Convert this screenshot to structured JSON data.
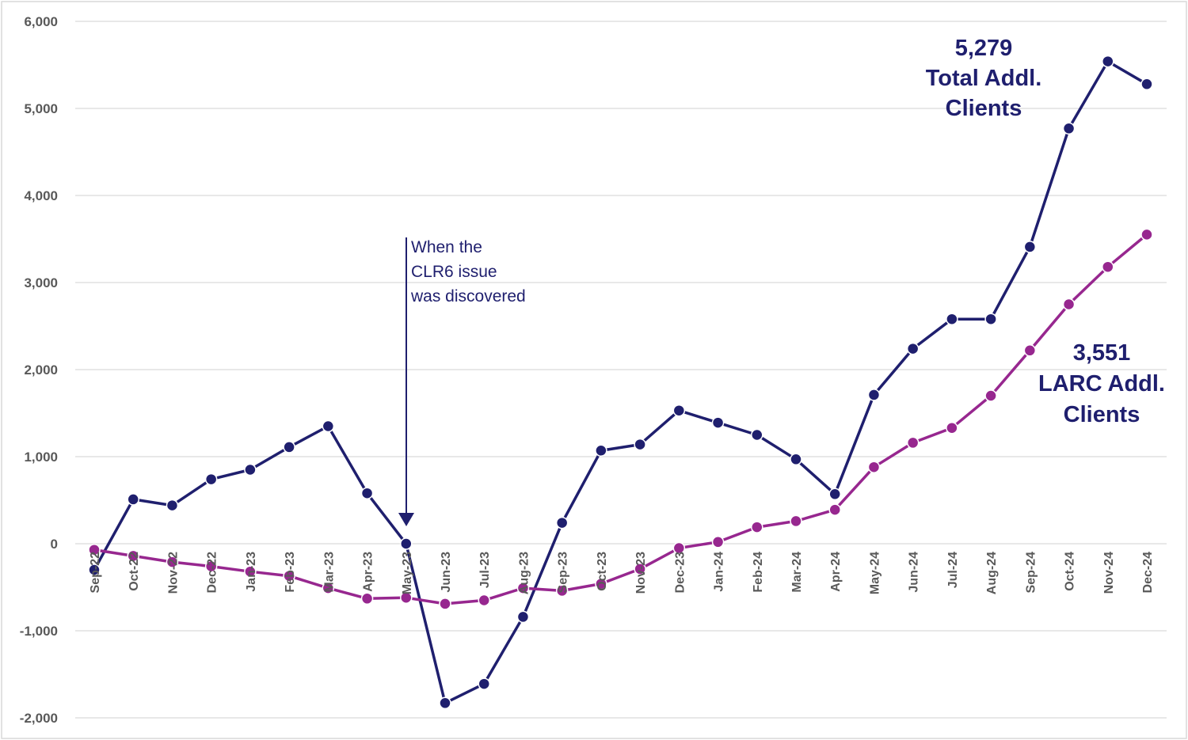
{
  "chart_data": {
    "type": "line",
    "categories": [
      "Sep-22",
      "Oct-22",
      "Nov-22",
      "Dec-22",
      "Jan-23",
      "Feb-23",
      "Mar-23",
      "Apr-23",
      "May-23",
      "Jun-23",
      "Jul-23",
      "Aug-23",
      "Sep-23",
      "Oct-23",
      "Nov-23",
      "Dec-23",
      "Jan-24",
      "Feb-24",
      "Mar-24",
      "Apr-24",
      "May-24",
      "Jun-24",
      "Jul-24",
      "Aug-24",
      "Sep-24",
      "Oct-24",
      "Nov-24",
      "Dec-24"
    ],
    "series": [
      {
        "key": "total",
        "color": "#1f1f6e",
        "values": [
          -300,
          510,
          440,
          740,
          850,
          1110,
          1350,
          580,
          0,
          -1830,
          -1610,
          -840,
          240,
          1070,
          1140,
          1530,
          1390,
          1250,
          970,
          570,
          1710,
          2240,
          2580,
          2580,
          3410,
          4770,
          5540,
          5279
        ]
      },
      {
        "key": "larc",
        "color": "#97278f",
        "values": [
          -70,
          -140,
          -210,
          -260,
          -320,
          -370,
          -510,
          -630,
          -620,
          -690,
          -650,
          -510,
          -540,
          -460,
          -290,
          -50,
          20,
          190,
          260,
          390,
          880,
          1160,
          1330,
          1700,
          2220,
          2750,
          3180,
          3551
        ]
      }
    ],
    "y_ticks": [
      "6,000",
      "5,000",
      "4,000",
      "3,000",
      "2,000",
      "1,000",
      "0",
      "-1,000",
      "-2,000"
    ],
    "ylim": [
      -2000,
      6000
    ],
    "grid": true,
    "annotations": {
      "total_value": "5,279",
      "total_line1": "Total Addl.",
      "total_line2": "Clients",
      "larc_value": "3,551",
      "larc_line1": "LARC Addl.",
      "larc_line2": "Clients",
      "note_line1": "When the",
      "note_line2": "CLR6 issue",
      "note_line3": "was discovered"
    }
  }
}
